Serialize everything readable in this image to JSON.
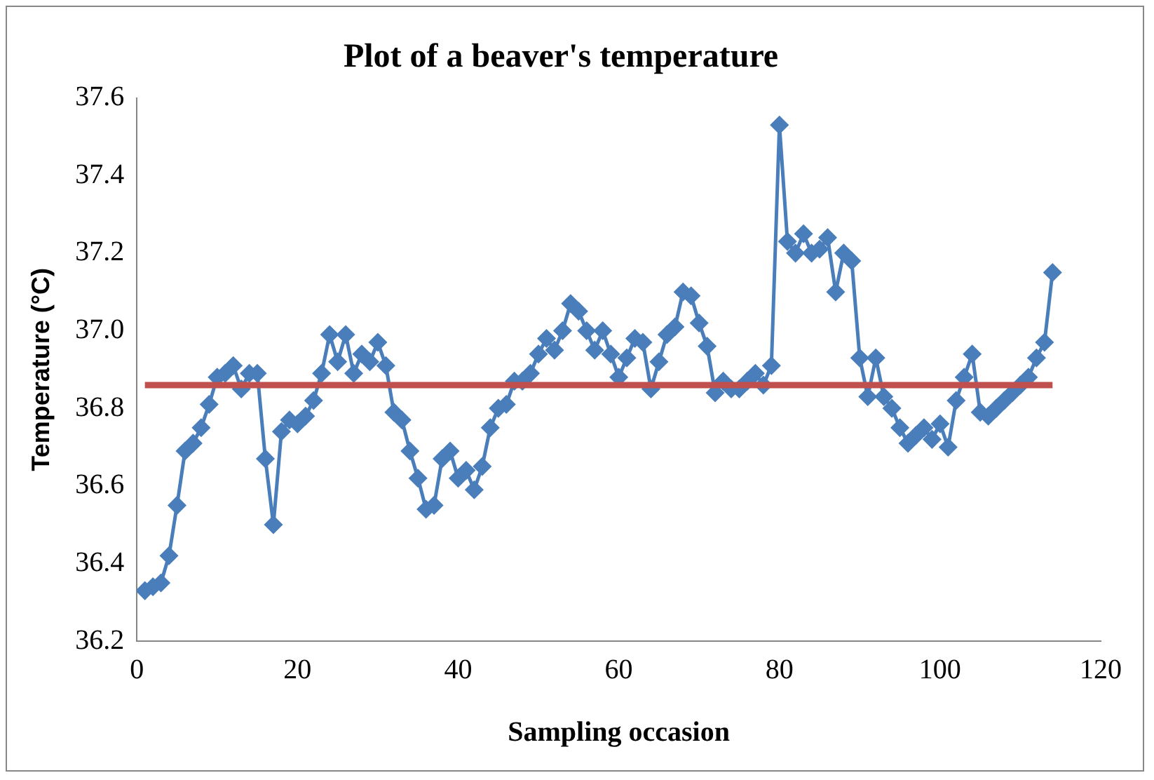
{
  "chart_data": {
    "type": "line",
    "title": "Plot of a beaver's temperature",
    "xlabel": "Sampling occasion",
    "ylabel": "Temperature (°C)",
    "series": [
      {
        "color": "#4a7ebb",
        "x": [
          1,
          2,
          3,
          4,
          5,
          6,
          7,
          8,
          9,
          10,
          11,
          12,
          13,
          14,
          15,
          16,
          17,
          18,
          19,
          20,
          21,
          22,
          23,
          24,
          25,
          26,
          27,
          28,
          29,
          30,
          31,
          32,
          33,
          34,
          35,
          36,
          37,
          38,
          39,
          40,
          41,
          42,
          43,
          44,
          45,
          46,
          47,
          48,
          49,
          50,
          51,
          52,
          53,
          54,
          55,
          56,
          57,
          58,
          59,
          60,
          61,
          62,
          63,
          64,
          65,
          66,
          67,
          68,
          69,
          70,
          71,
          72,
          73,
          74,
          75,
          76,
          77,
          78,
          79,
          80,
          81,
          82,
          83,
          84,
          85,
          86,
          87,
          88,
          89,
          90,
          91,
          92,
          93,
          94,
          95,
          96,
          97,
          98,
          99,
          100,
          101,
          102,
          103,
          104,
          105,
          106,
          107,
          108,
          109,
          110,
          111,
          112,
          113,
          114
        ],
        "values": [
          36.33,
          36.34,
          36.35,
          36.42,
          36.55,
          36.69,
          36.71,
          36.75,
          36.81,
          36.88,
          36.89,
          36.91,
          36.85,
          36.89,
          36.89,
          36.67,
          36.5,
          36.74,
          36.77,
          36.76,
          36.78,
          36.82,
          36.89,
          36.99,
          36.92,
          36.99,
          36.89,
          36.94,
          36.92,
          36.97,
          36.91,
          36.79,
          36.77,
          36.69,
          36.62,
          36.54,
          36.55,
          36.67,
          36.69,
          36.62,
          36.64,
          36.59,
          36.65,
          36.75,
          36.8,
          36.81,
          36.87,
          36.87,
          36.89,
          36.94,
          36.98,
          36.95,
          37.0,
          37.07,
          37.05,
          37.0,
          36.95,
          37.0,
          36.94,
          36.88,
          36.93,
          36.98,
          36.97,
          36.85,
          36.92,
          36.99,
          37.01,
          37.1,
          37.09,
          37.02,
          36.96,
          36.84,
          36.87,
          36.85,
          36.85,
          36.87,
          36.89,
          36.86,
          36.91,
          37.53,
          37.23,
          37.2,
          37.25,
          37.2,
          37.21,
          37.24,
          37.1,
          37.2,
          37.18,
          36.93,
          36.83,
          36.93,
          36.83,
          36.8,
          36.75,
          36.71,
          36.73,
          36.75,
          36.72,
          36.76,
          36.7,
          36.82,
          36.88,
          36.94,
          36.79,
          36.78,
          36.8,
          36.82,
          36.84,
          36.86,
          36.88,
          36.93,
          36.97,
          37.15
        ]
      }
    ],
    "xlim": [
      0,
      120
    ],
    "xticks": [
      0,
      20,
      40,
      60,
      80,
      100,
      120
    ],
    "ylim": [
      36.2,
      37.6
    ],
    "yticks": [
      {
        "value": 36.2,
        "label": "36.2"
      },
      {
        "value": 36.4,
        "label": "36.4"
      },
      {
        "value": 36.6,
        "label": "36.6"
      },
      {
        "value": 36.8,
        "label": "36.8"
      },
      {
        "value": 37.0,
        "label": "37.0"
      },
      {
        "value": 37.2,
        "label": "37.2"
      },
      {
        "value": 37.4,
        "label": "37.4"
      },
      {
        "value": 37.6,
        "label": "37.6"
      }
    ],
    "ref_lines": [
      {
        "axis": "y",
        "value": 36.86,
        "color": "#c0504d"
      }
    ],
    "marker": "diamond",
    "line_style": "solid",
    "grid": false,
    "legend": false
  }
}
